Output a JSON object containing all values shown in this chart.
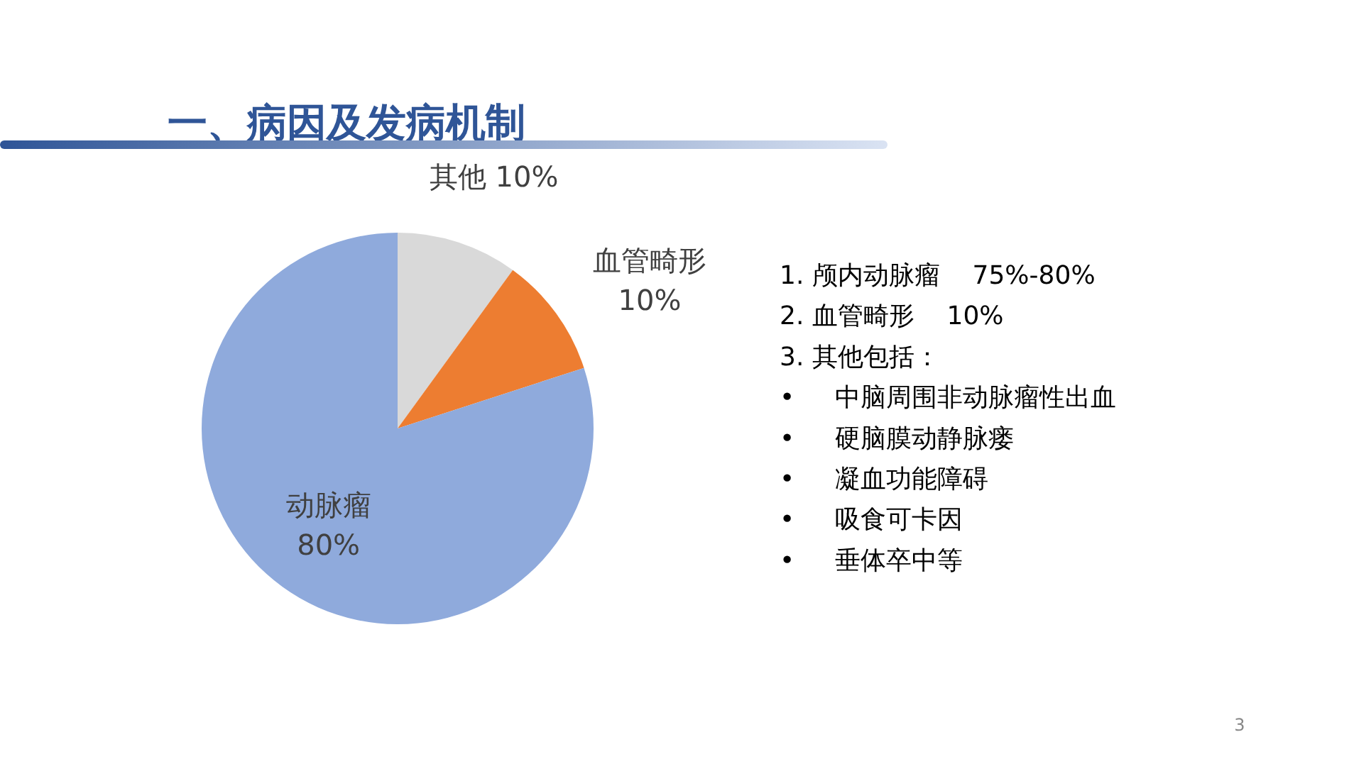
{
  "chart_data": [
    {
      "type": "pie",
      "title": "一、病因及发病机制",
      "categories": [
        "其他",
        "血管畸形",
        "动脉瘤"
      ],
      "values": [
        10,
        10,
        80
      ],
      "value_labels": [
        "10%",
        "10%",
        "80%"
      ],
      "colors": [
        "#d9d9d9",
        "#ed7d31",
        "#8faadc"
      ]
    },
    {
      "type": "other",
      "annotations": [
        "1. 颅内动脉瘤    75%-80%",
        "2. 血管畸形    10%",
        "3. 其他包括：",
        "•     中脑周围非动脉瘤性出血",
        "•     硬脑膜动静脉瘘",
        "•     凝血功能障碍",
        "•     吸食可卡因",
        "•     垂体卒中等",
        "3"
      ]
    }
  ]
}
